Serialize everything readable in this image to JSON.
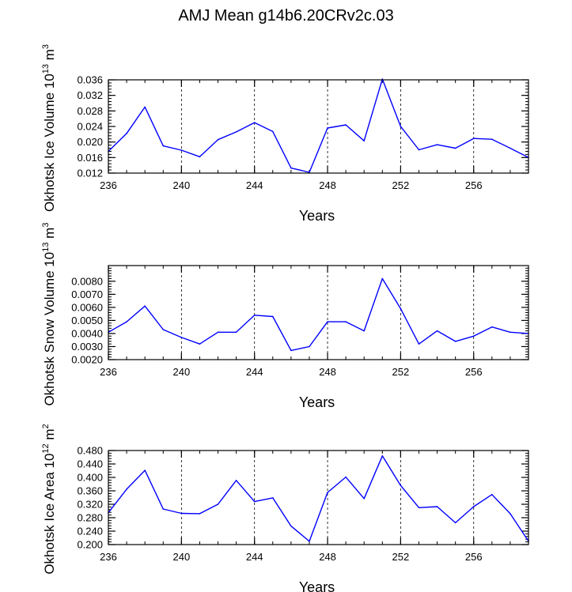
{
  "figure": {
    "title": "AMJ Mean g14b6.20CRv2c.03"
  },
  "style": {
    "line_color": "#0000ff",
    "axis_color": "#000000",
    "grid_color": "#000000"
  },
  "chart_data": [
    {
      "type": "line",
      "xlabel": "Years",
      "ylabel_main": "Okhotsk Ice Volume 10",
      "ylabel_exp": "13",
      "ylabel_unit": " m",
      "ylabel_unit_exp": "3",
      "xlim": [
        236,
        259
      ],
      "ylim": [
        0.012,
        0.036
      ],
      "xticks": [
        236,
        240,
        244,
        248,
        252,
        256
      ],
      "xtick_labels": [
        "236",
        "240",
        "244",
        "248",
        "252",
        "256"
      ],
      "yticks": [
        0.012,
        0.016,
        0.02,
        0.024,
        0.028,
        0.032,
        0.036
      ],
      "ytick_labels": [
        "0.012",
        "0.016",
        "0.020",
        "0.024",
        "0.028",
        "0.032",
        "0.036"
      ],
      "grid": "vertical dashed at major x ticks",
      "series": [
        {
          "x": [
            236,
            237,
            238,
            239,
            240,
            241,
            242,
            243,
            244,
            245,
            246,
            247,
            248,
            249,
            250,
            251,
            252,
            253,
            254,
            255,
            256,
            257,
            258,
            259
          ],
          "y": [
            0.0176,
            0.0222,
            0.029,
            0.019,
            0.0179,
            0.0162,
            0.0206,
            0.0226,
            0.025,
            0.0227,
            0.0133,
            0.0122,
            0.0236,
            0.0244,
            0.0203,
            0.0362,
            0.024,
            0.018,
            0.0193,
            0.0184,
            0.0209,
            0.0207,
            0.0184,
            0.016
          ]
        }
      ]
    },
    {
      "type": "line",
      "xlabel": "Years",
      "ylabel_main": "Okhotsk Snow Volume 10",
      "ylabel_exp": "13",
      "ylabel_unit": " m",
      "ylabel_unit_exp": "3",
      "xlim": [
        236,
        259
      ],
      "ylim": [
        0.002,
        0.0092
      ],
      "xticks": [
        236,
        240,
        244,
        248,
        252,
        256
      ],
      "xtick_labels": [
        "236",
        "240",
        "244",
        "248",
        "252",
        "256"
      ],
      "yticks": [
        0.002,
        0.003,
        0.004,
        0.005,
        0.006,
        0.007,
        0.008
      ],
      "ytick_labels": [
        "0.0020",
        "0.0030",
        "0.0040",
        "0.0050",
        "0.0060",
        "0.0070",
        "0.0080"
      ],
      "grid": "vertical dashed at major x ticks",
      "series": [
        {
          "x": [
            236,
            237,
            238,
            239,
            240,
            241,
            242,
            243,
            244,
            245,
            246,
            247,
            248,
            249,
            250,
            251,
            252,
            253,
            254,
            255,
            256,
            257,
            258,
            259
          ],
          "y": [
            0.0041,
            0.0049,
            0.0061,
            0.0043,
            0.0037,
            0.0032,
            0.0041,
            0.0041,
            0.0054,
            0.0053,
            0.0027,
            0.003,
            0.0049,
            0.0049,
            0.0042,
            0.0082,
            0.0059,
            0.0032,
            0.0042,
            0.0034,
            0.0038,
            0.0045,
            0.0041,
            0.004
          ]
        }
      ]
    },
    {
      "type": "line",
      "xlabel": "Years",
      "ylabel_main": "Okhotsk Ice Area 10",
      "ylabel_exp": "12",
      "ylabel_unit": " m",
      "ylabel_unit_exp": "2",
      "xlim": [
        236,
        259
      ],
      "ylim": [
        0.2,
        0.48
      ],
      "xticks": [
        236,
        240,
        244,
        248,
        252,
        256
      ],
      "xtick_labels": [
        "236",
        "240",
        "244",
        "248",
        "252",
        "256"
      ],
      "yticks": [
        0.2,
        0.24,
        0.28,
        0.32,
        0.36,
        0.4,
        0.44,
        0.48
      ],
      "ytick_labels": [
        "0.200",
        "0.240",
        "0.280",
        "0.320",
        "0.360",
        "0.400",
        "0.440",
        "0.480"
      ],
      "grid": "vertical dashed at major x ticks",
      "series": [
        {
          "x": [
            236,
            237,
            238,
            239,
            240,
            241,
            242,
            243,
            244,
            245,
            246,
            247,
            248,
            249,
            250,
            251,
            252,
            253,
            254,
            255,
            256,
            257,
            258,
            259
          ],
          "y": [
            0.295,
            0.365,
            0.421,
            0.306,
            0.293,
            0.292,
            0.32,
            0.391,
            0.328,
            0.339,
            0.255,
            0.21,
            0.355,
            0.401,
            0.337,
            0.464,
            0.376,
            0.31,
            0.313,
            0.265,
            0.313,
            0.349,
            0.292,
            0.21
          ]
        }
      ]
    }
  ]
}
